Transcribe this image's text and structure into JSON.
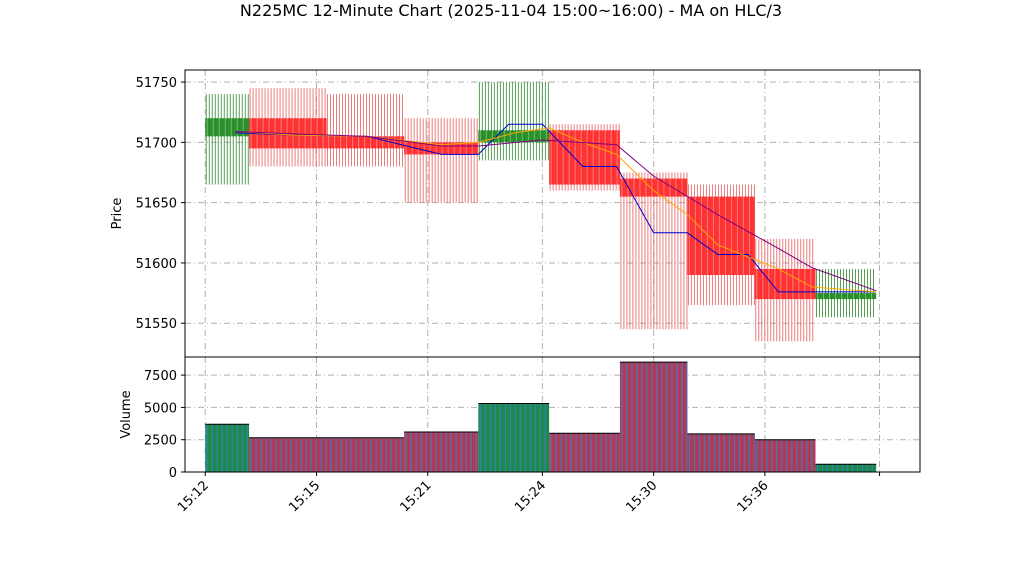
{
  "title": "N225MC 12-Minute Chart (2025-11-04 15:00~16:00) - MA on HLC/3",
  "chart_data": [
    {
      "type": "candlestick",
      "ylabel": "Price",
      "ylim": [
        51522,
        51760
      ],
      "yticks": [
        51550,
        51600,
        51650,
        51700,
        51750
      ],
      "grid": true,
      "x_tick_labels": [
        "15:12",
        "15:15",
        "15:21",
        "15:24",
        "15:30",
        "15:36",
        ""
      ],
      "x_tick_positions": [
        0,
        1.65,
        3.3,
        5.0,
        6.65,
        8.3,
        10.0
      ],
      "candles": [
        {
          "x0": 0.0,
          "x1": 0.65,
          "open": 51705,
          "high": 51740,
          "low": 51665,
          "close": 51720,
          "color": "green"
        },
        {
          "x0": 0.65,
          "x1": 1.8,
          "open": 51720,
          "high": 51745,
          "low": 51680,
          "close": 51695,
          "color": "red"
        },
        {
          "x0": 1.8,
          "x1": 2.95,
          "open": 51705,
          "high": 51740,
          "low": 51680,
          "close": 51695,
          "color": "red"
        },
        {
          "x0": 2.95,
          "x1": 4.05,
          "open": 51700,
          "high": 51720,
          "low": 51650,
          "close": 51690,
          "color": "red"
        },
        {
          "x0": 4.05,
          "x1": 5.1,
          "open": 51700,
          "high": 51750,
          "low": 51685,
          "close": 51710,
          "color": "green"
        },
        {
          "x0": 5.1,
          "x1": 6.15,
          "open": 51710,
          "high": 51715,
          "low": 51660,
          "close": 51665,
          "color": "red"
        },
        {
          "x0": 6.15,
          "x1": 7.15,
          "open": 51670,
          "high": 51675,
          "low": 51545,
          "close": 51655,
          "color": "red"
        },
        {
          "x0": 7.15,
          "x1": 8.15,
          "open": 51655,
          "high": 51665,
          "low": 51565,
          "close": 51590,
          "color": "red"
        },
        {
          "x0": 8.15,
          "x1": 9.05,
          "open": 51595,
          "high": 51620,
          "low": 51535,
          "close": 51570,
          "color": "red"
        },
        {
          "x0": 9.05,
          "x1": 9.95,
          "open": 51570,
          "high": 51595,
          "low": 51555,
          "close": 51575,
          "color": "green"
        }
      ],
      "ma_lines": [
        {
          "color": "#0000cc",
          "x": [
            0.45,
            1.3,
            2.4,
            3.5,
            4.05,
            4.5,
            5.0,
            5.6,
            6.1,
            6.65,
            7.15,
            7.6,
            8.05,
            8.5,
            9.0,
            9.95
          ],
          "y": [
            51708,
            51706,
            51705,
            51690,
            51690,
            51715,
            51715,
            51680,
            51680,
            51625,
            51625,
            51607,
            51607,
            51576,
            51576,
            51576
          ]
        },
        {
          "color": "#ffa500",
          "x": [
            0.45,
            1.3,
            2.4,
            3.5,
            4.05,
            4.6,
            5.1,
            5.6,
            6.1,
            6.65,
            7.15,
            7.6,
            8.05,
            8.5,
            9.0,
            9.95
          ],
          "y": [
            51709,
            51706,
            51705,
            51698,
            51700,
            51708,
            51712,
            51700,
            51690,
            51660,
            51640,
            51615,
            51605,
            51595,
            51580,
            51576
          ]
        },
        {
          "color": "#800080",
          "x": [
            0.45,
            1.3,
            2.4,
            3.5,
            4.05,
            5.0,
            6.1,
            6.65,
            7.6,
            8.5,
            9.0,
            9.95
          ],
          "y": [
            51709,
            51707,
            51705,
            51697,
            51697,
            51702,
            51698,
            51672,
            51640,
            51612,
            51596,
            51577
          ]
        }
      ]
    },
    {
      "type": "bar",
      "ylabel": "Volume",
      "ylim": [
        0,
        8900
      ],
      "yticks": [
        0,
        2500,
        5000,
        7500
      ],
      "grid": true,
      "bars": [
        {
          "x0": 0.0,
          "x1": 0.65,
          "value": 3700,
          "color": "green"
        },
        {
          "x0": 0.65,
          "x1": 2.95,
          "value": 2650,
          "color": "red"
        },
        {
          "x0": 2.95,
          "x1": 4.05,
          "value": 3100,
          "color": "red"
        },
        {
          "x0": 4.05,
          "x1": 5.1,
          "value": 5300,
          "color": "green"
        },
        {
          "x0": 5.1,
          "x1": 6.15,
          "value": 3000,
          "color": "red"
        },
        {
          "x0": 6.15,
          "x1": 7.15,
          "value": 8500,
          "color": "red"
        },
        {
          "x0": 7.15,
          "x1": 8.15,
          "value": 2950,
          "color": "red"
        },
        {
          "x0": 8.15,
          "x1": 9.05,
          "value": 2500,
          "color": "red"
        },
        {
          "x0": 9.05,
          "x1": 9.95,
          "value": 600,
          "color": "green"
        }
      ]
    }
  ]
}
